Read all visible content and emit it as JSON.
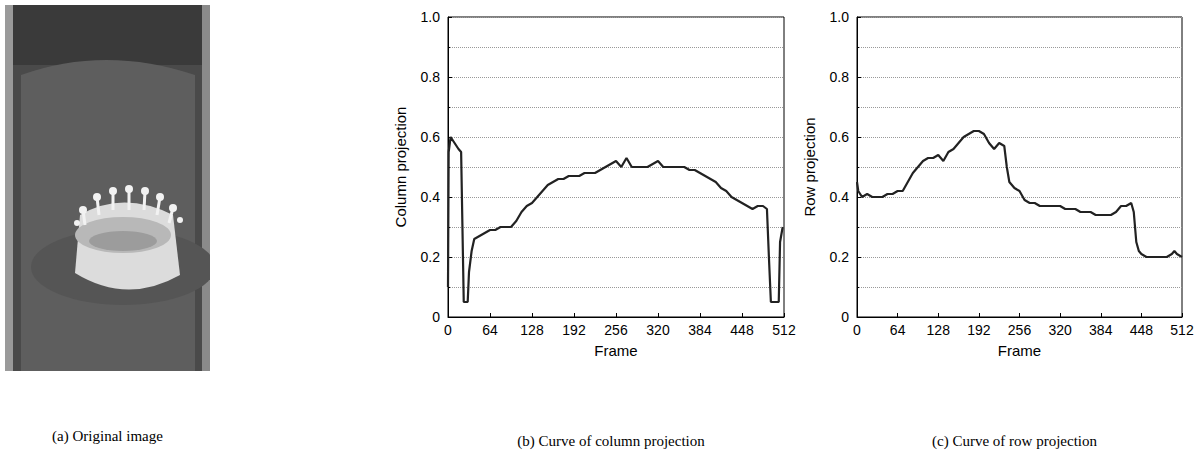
{
  "image_panel": {
    "caption": "(a) Original image"
  },
  "chart_data": [
    {
      "type": "line",
      "title": "(b) Curve of column projection",
      "xlabel": "Frame",
      "ylabel": "Column projection",
      "color": "#222222",
      "grid": true,
      "xlim": [
        0,
        512
      ],
      "xticks": [
        0,
        64,
        128,
        192,
        256,
        320,
        384,
        448,
        512
      ],
      "ylim": [
        0,
        1
      ],
      "yticks": [
        0,
        0.2,
        0.4,
        0.6,
        0.8,
        {
          "value": 1,
          "label": "1.0"
        }
      ],
      "x": [
        0,
        1,
        4,
        10,
        16,
        20,
        22,
        24,
        30,
        32,
        36,
        40,
        48,
        56,
        64,
        72,
        80,
        88,
        96,
        104,
        112,
        120,
        128,
        136,
        144,
        152,
        160,
        168,
        176,
        184,
        192,
        200,
        208,
        216,
        224,
        232,
        240,
        248,
        256,
        264,
        272,
        280,
        288,
        296,
        304,
        312,
        320,
        328,
        336,
        344,
        352,
        360,
        368,
        376,
        384,
        392,
        400,
        408,
        416,
        424,
        432,
        440,
        448,
        456,
        464,
        472,
        480,
        486,
        489,
        492,
        500,
        504,
        506,
        510
      ],
      "values": [
        0.1,
        0.55,
        0.6,
        0.58,
        0.56,
        0.55,
        0.3,
        0.05,
        0.05,
        0.15,
        0.22,
        0.26,
        0.27,
        0.28,
        0.29,
        0.29,
        0.3,
        0.3,
        0.3,
        0.32,
        0.35,
        0.37,
        0.38,
        0.4,
        0.42,
        0.44,
        0.45,
        0.46,
        0.46,
        0.47,
        0.47,
        0.47,
        0.48,
        0.48,
        0.48,
        0.49,
        0.5,
        0.51,
        0.52,
        0.5,
        0.53,
        0.5,
        0.5,
        0.5,
        0.5,
        0.51,
        0.52,
        0.5,
        0.5,
        0.5,
        0.5,
        0.5,
        0.49,
        0.49,
        0.48,
        0.47,
        0.46,
        0.45,
        0.43,
        0.42,
        0.4,
        0.39,
        0.38,
        0.37,
        0.36,
        0.37,
        0.37,
        0.36,
        0.2,
        0.05,
        0.05,
        0.05,
        0.25,
        0.3
      ]
    },
    {
      "type": "line",
      "title": "(c) Curve of row projection",
      "xlabel": "Frame",
      "ylabel": "Row projection",
      "color": "#222222",
      "grid": true,
      "xlim": [
        0,
        512
      ],
      "xticks": [
        0,
        64,
        128,
        192,
        256,
        320,
        384,
        448,
        512
      ],
      "ylim": [
        0,
        1
      ],
      "yticks": [
        0,
        0.2,
        0.4,
        0.6,
        0.8,
        {
          "value": 1,
          "label": "1.0"
        }
      ],
      "x": [
        0,
        2,
        8,
        16,
        24,
        32,
        40,
        48,
        56,
        64,
        72,
        80,
        88,
        96,
        104,
        112,
        120,
        128,
        136,
        144,
        152,
        160,
        168,
        176,
        184,
        192,
        200,
        208,
        216,
        224,
        232,
        236,
        240,
        248,
        256,
        264,
        272,
        280,
        288,
        296,
        304,
        312,
        320,
        328,
        336,
        344,
        352,
        360,
        368,
        376,
        384,
        392,
        400,
        408,
        416,
        424,
        432,
        436,
        440,
        444,
        448,
        456,
        464,
        472,
        480,
        488,
        496,
        500,
        504,
        512
      ],
      "values": [
        0.45,
        0.42,
        0.4,
        0.41,
        0.4,
        0.4,
        0.4,
        0.41,
        0.41,
        0.42,
        0.42,
        0.45,
        0.48,
        0.5,
        0.52,
        0.53,
        0.53,
        0.54,
        0.52,
        0.55,
        0.56,
        0.58,
        0.6,
        0.61,
        0.62,
        0.62,
        0.61,
        0.58,
        0.56,
        0.58,
        0.57,
        0.5,
        0.45,
        0.43,
        0.42,
        0.39,
        0.38,
        0.38,
        0.37,
        0.37,
        0.37,
        0.37,
        0.37,
        0.36,
        0.36,
        0.36,
        0.35,
        0.35,
        0.35,
        0.34,
        0.34,
        0.34,
        0.34,
        0.35,
        0.37,
        0.37,
        0.38,
        0.35,
        0.25,
        0.22,
        0.21,
        0.2,
        0.2,
        0.2,
        0.2,
        0.2,
        0.21,
        0.22,
        0.21,
        0.2
      ]
    }
  ]
}
